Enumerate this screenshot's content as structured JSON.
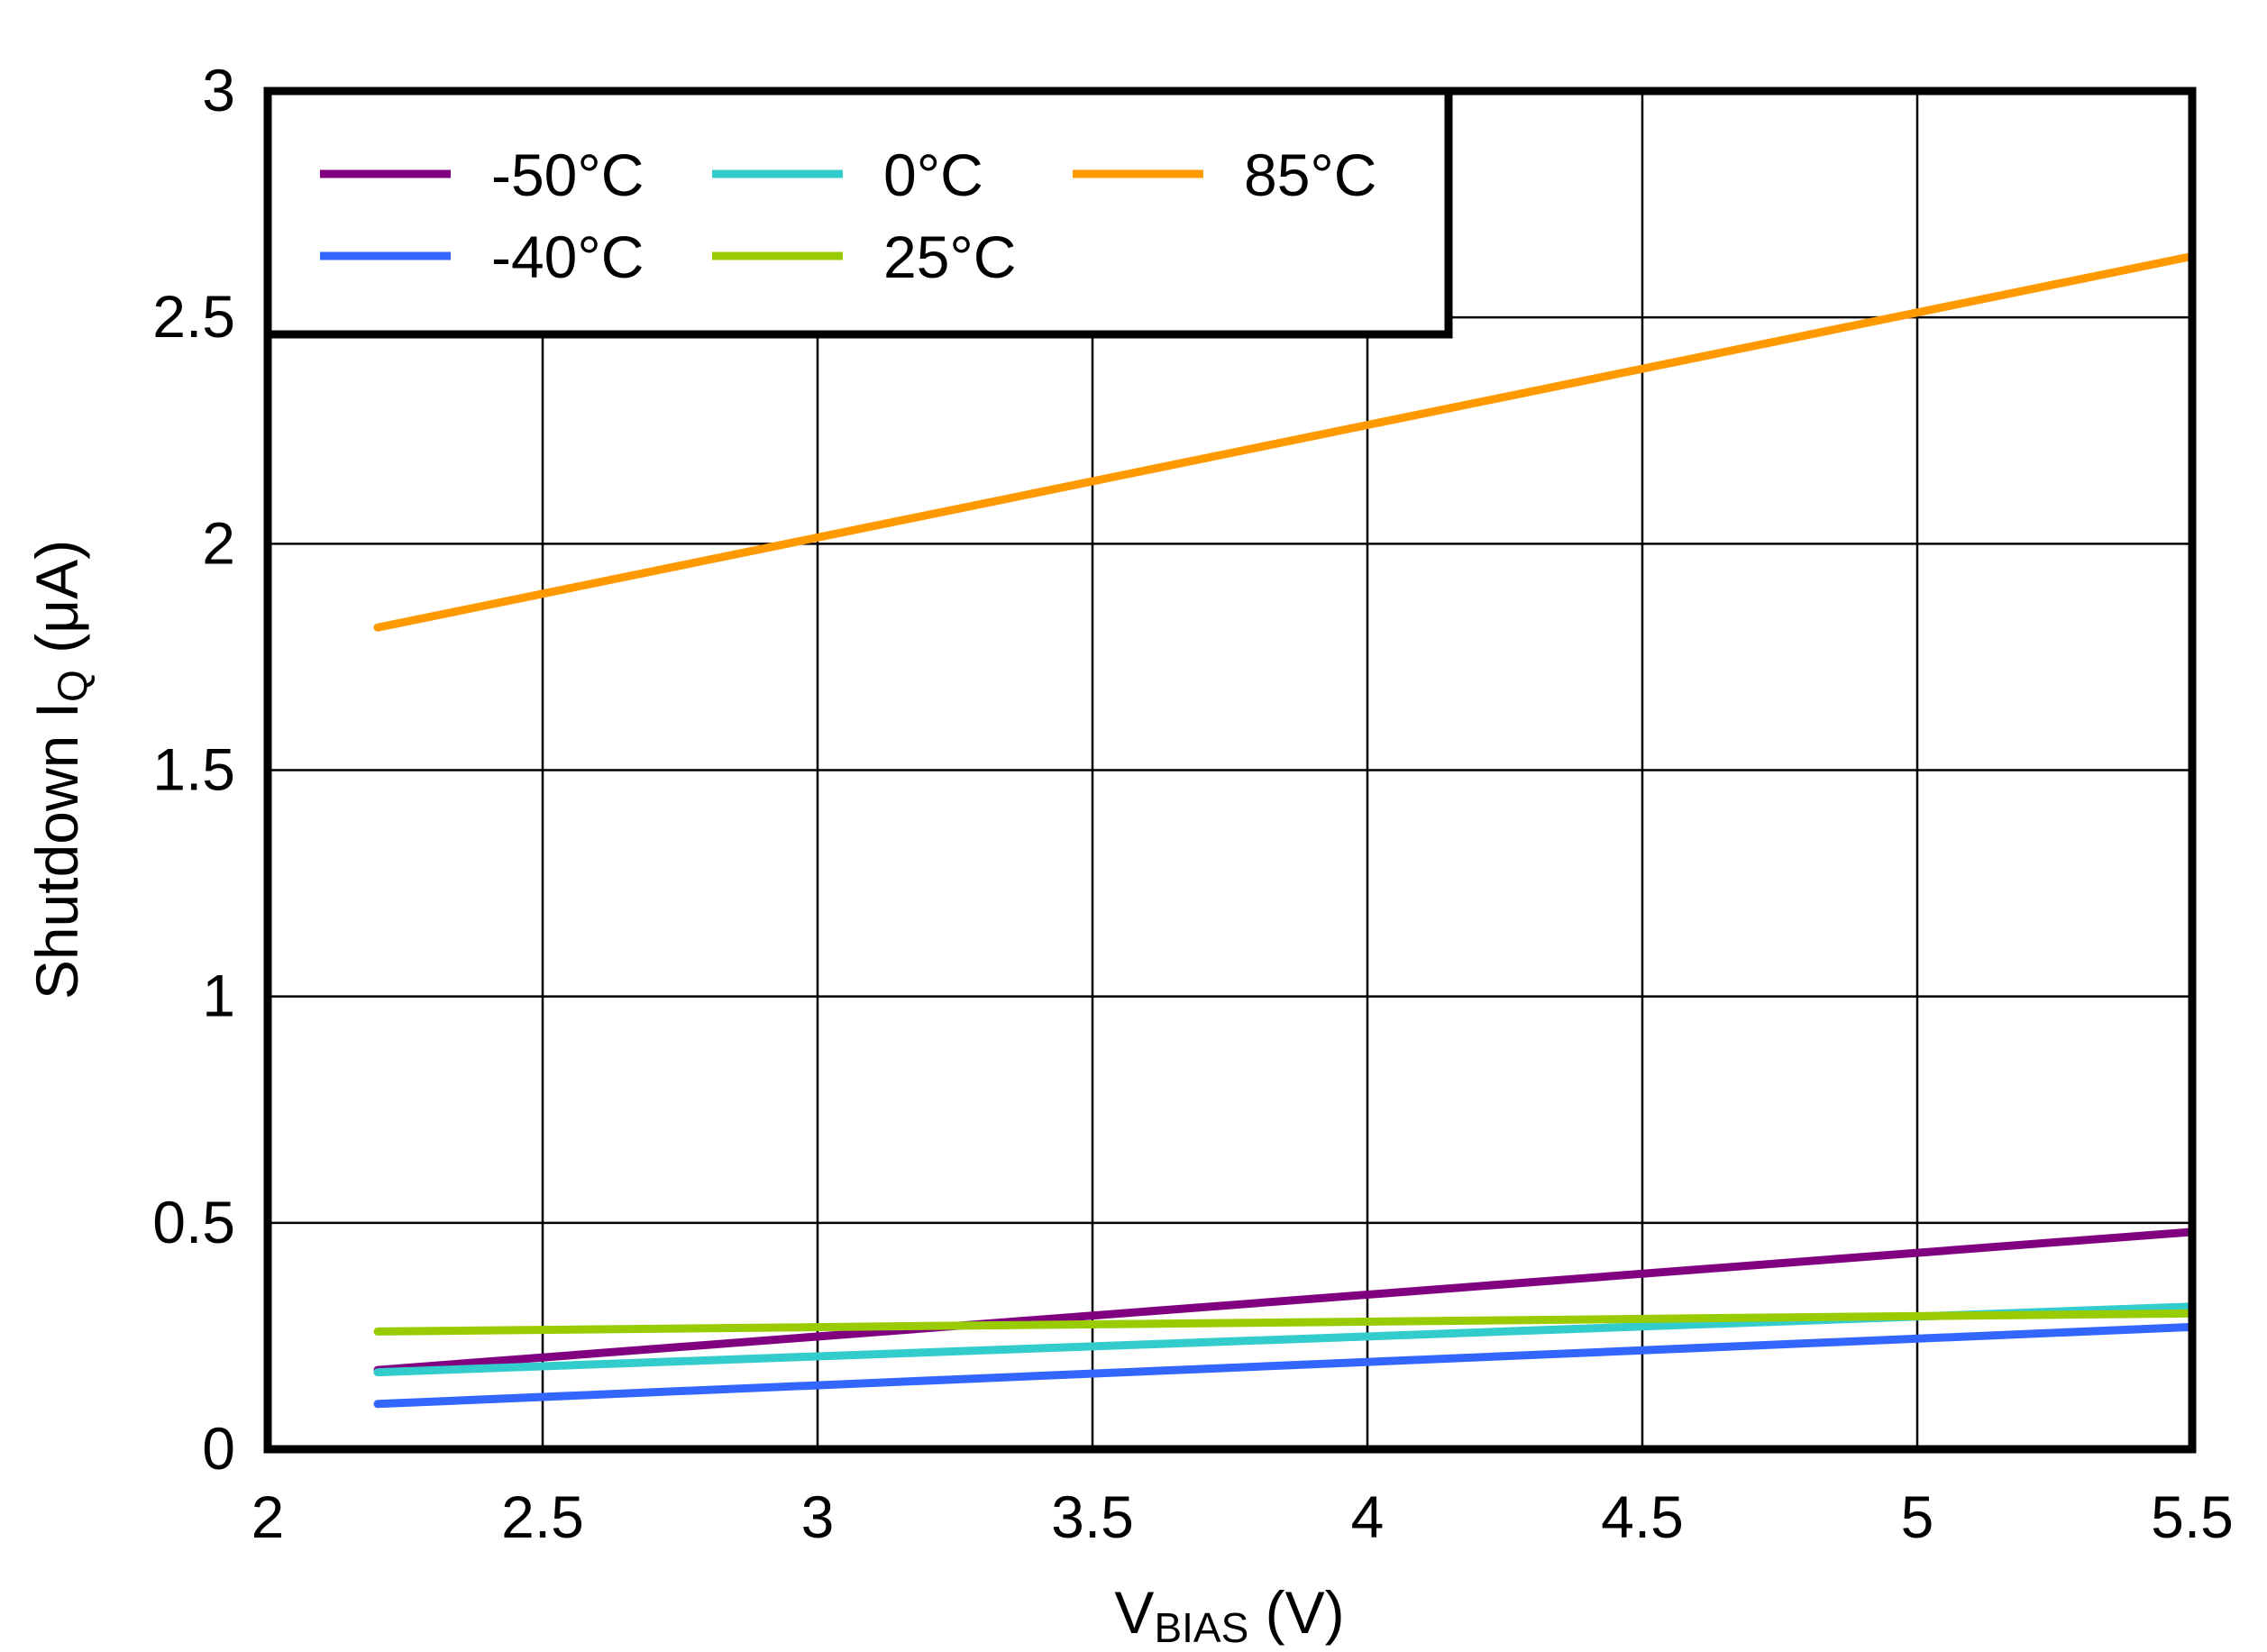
{
  "chart_data": {
    "type": "line",
    "title": "",
    "xlabel": {
      "main": "V",
      "sub": "BIAS",
      "unit": " (V)"
    },
    "ylabel": {
      "main": "Shutdown I",
      "sub": "Q",
      "unit": " (μA)"
    },
    "xlim": [
      2,
      5.5
    ],
    "ylim": [
      0,
      3
    ],
    "xticks": [
      2,
      2.5,
      3,
      3.5,
      4,
      4.5,
      5,
      5.5
    ],
    "yticks": [
      0,
      0.5,
      1,
      1.5,
      2,
      2.5,
      3
    ],
    "xtick_labels": [
      "2",
      "2.5",
      "3",
      "3.5",
      "4",
      "4.5",
      "5",
      "5.5"
    ],
    "ytick_labels": [
      "0",
      "0.5",
      "1",
      "1.5",
      "2",
      "2.5",
      "3"
    ],
    "grid": true,
    "legend_position": "top-left",
    "series": [
      {
        "name": "-50°C",
        "color": "#800080",
        "x": [
          2.2,
          5.5
        ],
        "y": [
          0.175,
          0.48
        ]
      },
      {
        "name": "-40°C",
        "color": "#3366ff",
        "x": [
          2.2,
          5.5
        ],
        "y": [
          0.1,
          0.27
        ]
      },
      {
        "name": "0°C",
        "color": "#33cccc",
        "x": [
          2.2,
          5.5
        ],
        "y": [
          0.17,
          0.315
        ]
      },
      {
        "name": "25°C",
        "color": "#99cc00",
        "x": [
          2.2,
          5.5
        ],
        "y": [
          0.26,
          0.3
        ]
      },
      {
        "name": "85°C",
        "color": "#ff9900",
        "x": [
          2.2,
          5.5
        ],
        "y": [
          1.815,
          2.635
        ]
      }
    ]
  }
}
